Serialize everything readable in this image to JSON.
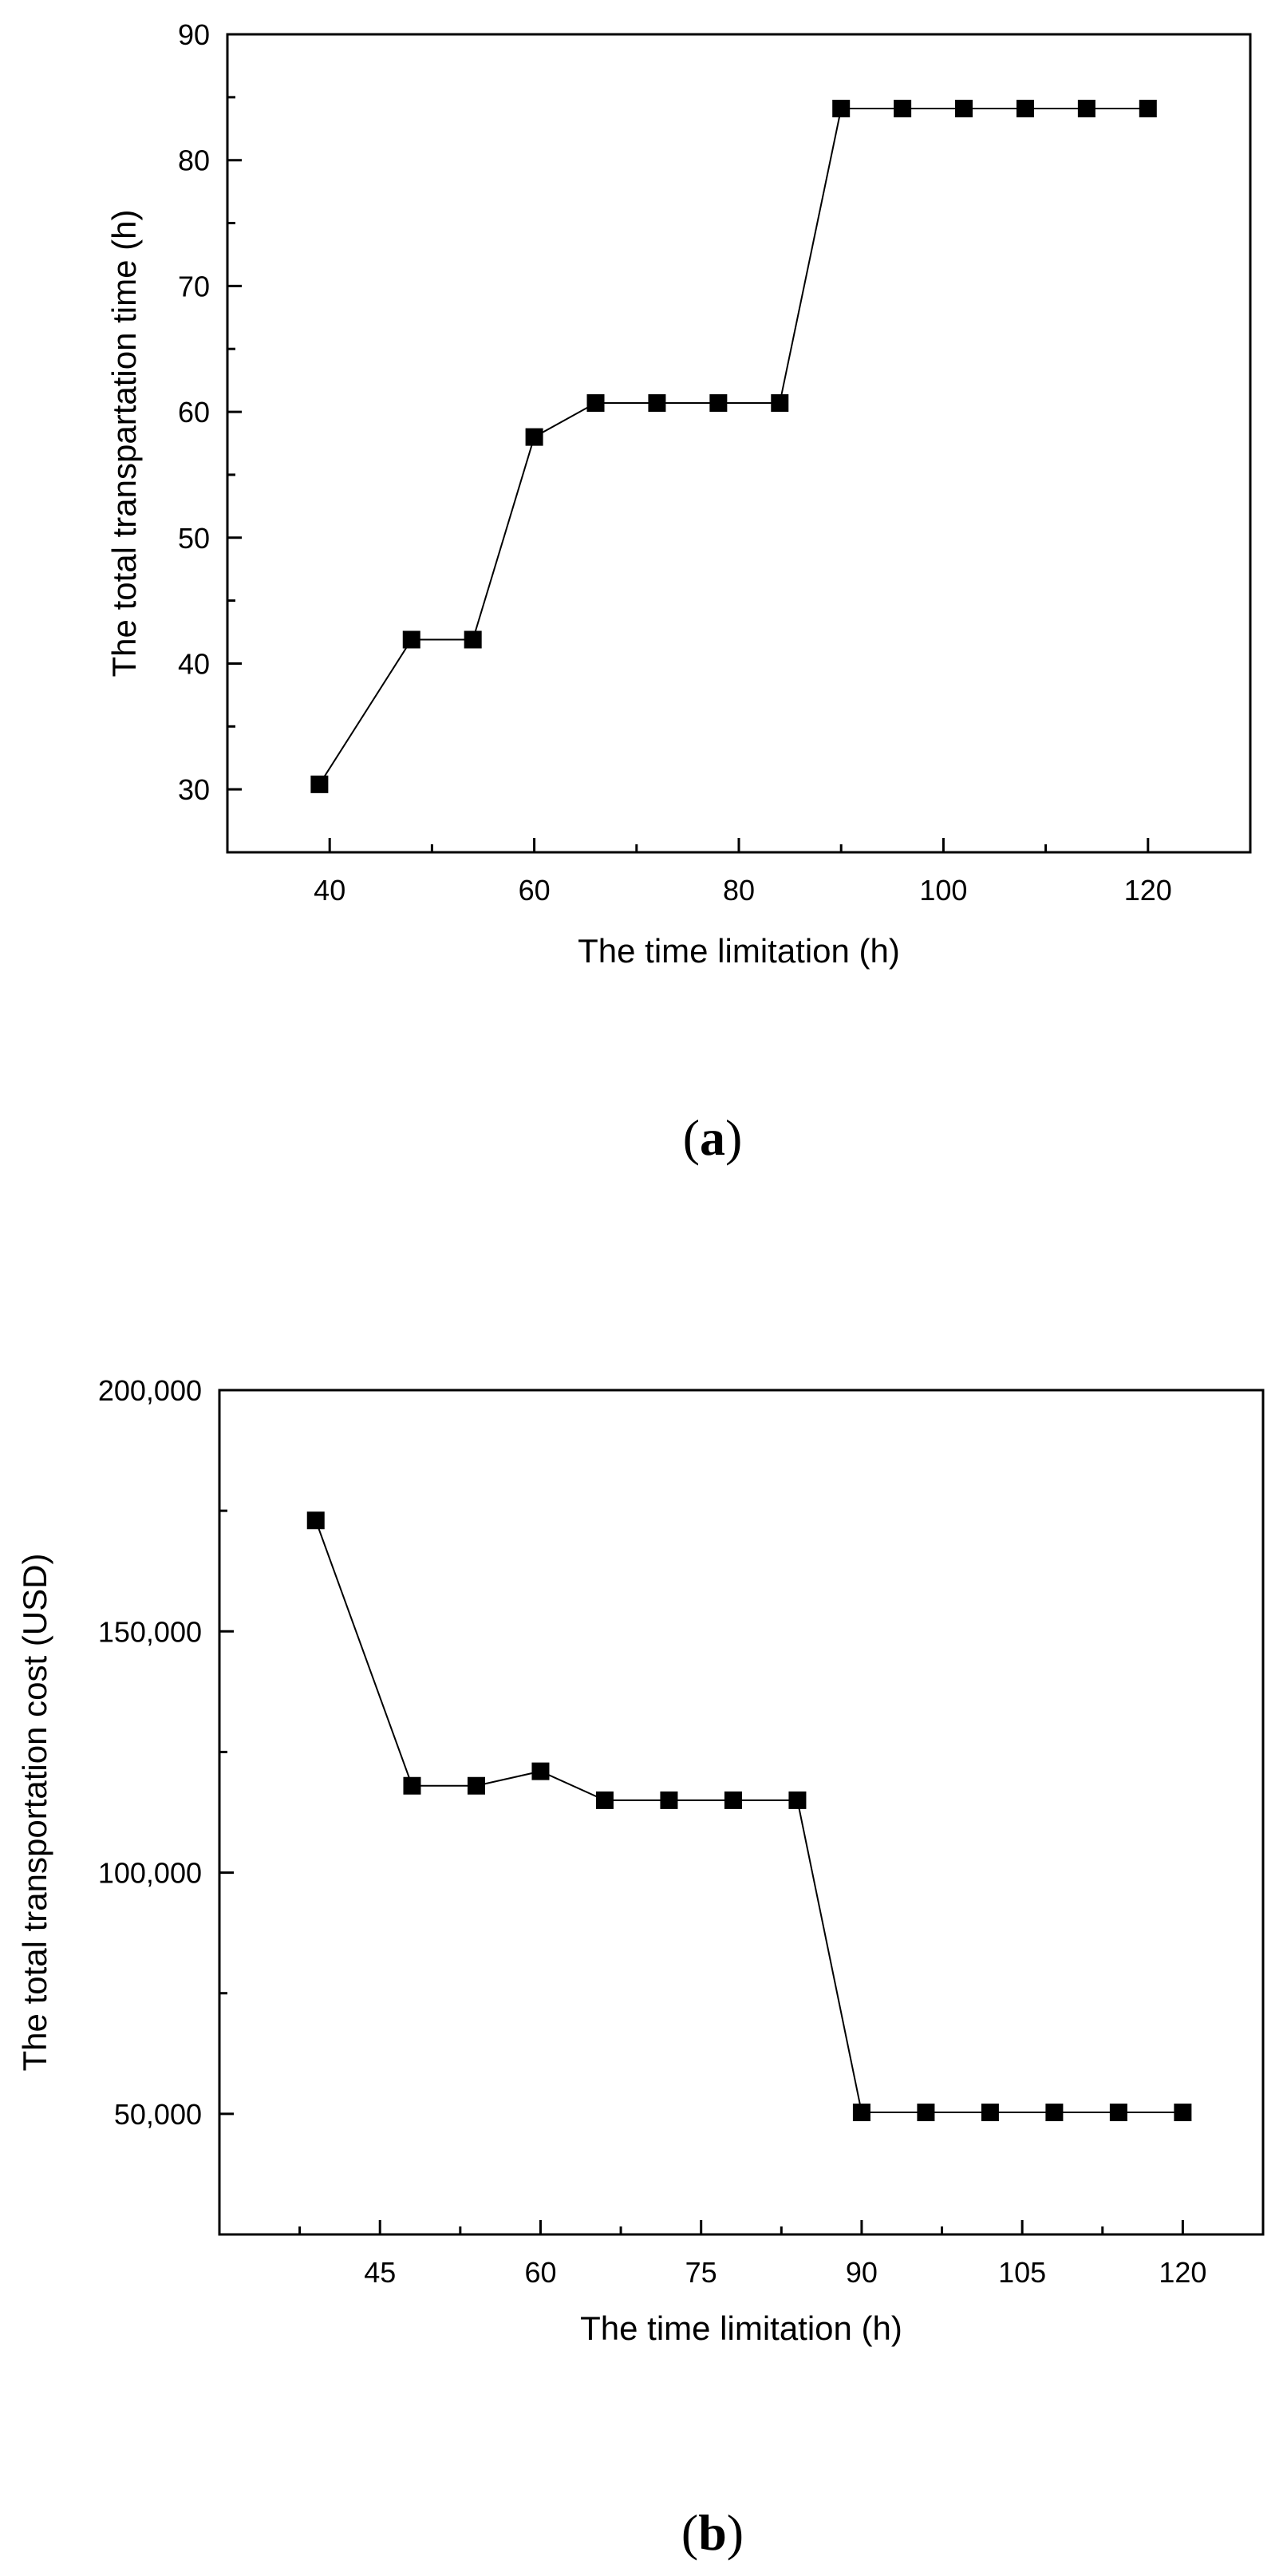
{
  "chart_data": [
    {
      "type": "line",
      "panel_label": "a",
      "title": "",
      "xlabel": "The time limitation (h)",
      "ylabel": "The total transpartation time (h)",
      "xlim": [
        30,
        130
      ],
      "ylim": [
        25,
        90
      ],
      "xticks": [
        40,
        60,
        80,
        100,
        120
      ],
      "xtick_labels": [
        "40",
        "60",
        "80",
        "100",
        "120"
      ],
      "xminor": [
        30,
        50,
        70,
        90,
        110,
        130
      ],
      "yticks": [
        30,
        40,
        50,
        60,
        70,
        80,
        90
      ],
      "ytick_labels": [
        "30",
        "40",
        "50",
        "60",
        "70",
        "80",
        "90"
      ],
      "yminor": [
        25,
        35,
        45,
        55,
        65,
        75,
        85
      ],
      "marker": "square",
      "grid": false,
      "x": [
        39,
        48,
        54,
        60,
        66,
        72,
        78,
        84,
        90,
        96,
        102,
        108,
        114,
        120
      ],
      "y": [
        30.4,
        41.9,
        41.9,
        58.0,
        60.7,
        60.7,
        60.7,
        60.7,
        84.1,
        84.1,
        84.1,
        84.1,
        84.1,
        84.1
      ]
    },
    {
      "type": "line",
      "panel_label": "b",
      "title": "",
      "xlabel": "The time limitation (h)",
      "ylabel": "The total transportation cost (USD)",
      "xlim": [
        30,
        127.5
      ],
      "ylim": [
        25000,
        200000
      ],
      "xticks": [
        45,
        60,
        75,
        90,
        105,
        120
      ],
      "xtick_labels": [
        "45",
        "60",
        "75",
        "90",
        "105",
        "120"
      ],
      "xminor": [
        37.5,
        52.5,
        67.5,
        82.5,
        97.5,
        112.5,
        127.5
      ],
      "yticks": [
        50000,
        100000,
        150000,
        200000
      ],
      "ytick_labels": [
        "50,000",
        "100,000",
        "150,000",
        "200,000"
      ],
      "yminor": [
        25000,
        75000,
        125000,
        175000
      ],
      "marker": "square",
      "grid": false,
      "x": [
        39,
        48,
        54,
        60,
        66,
        72,
        78,
        84,
        90,
        96,
        102,
        108,
        114,
        120
      ],
      "y": [
        173000,
        118000,
        118000,
        121000,
        115000,
        115000,
        115000,
        115000,
        50300,
        50300,
        50300,
        50300,
        50300,
        50300
      ]
    }
  ]
}
